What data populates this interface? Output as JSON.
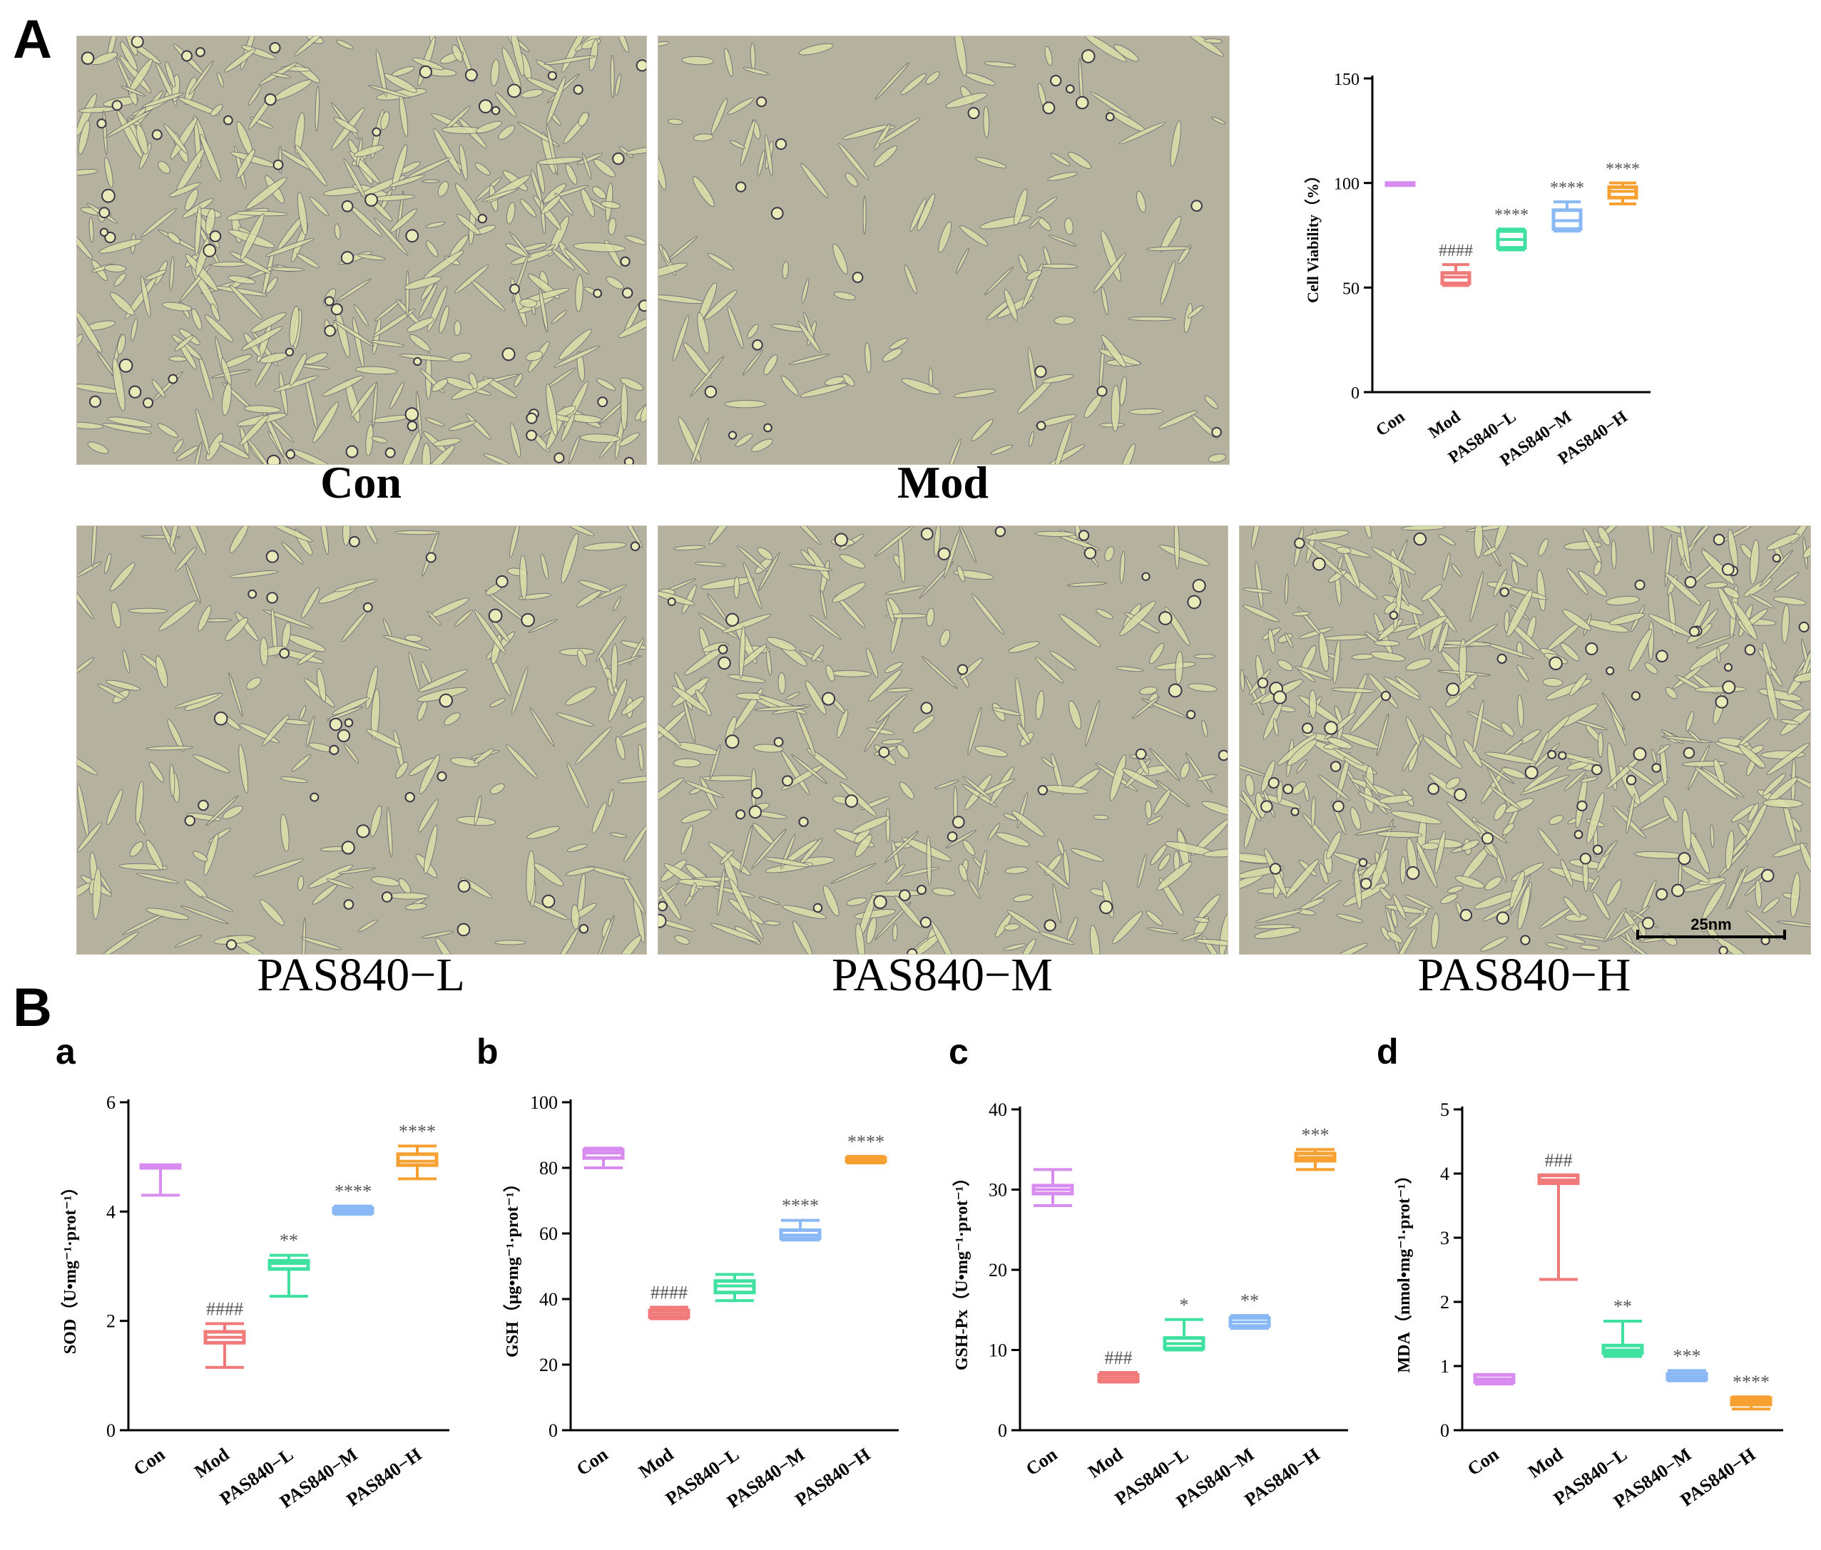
{
  "panels": {
    "A": "A",
    "B": "B",
    "sub": [
      "a",
      "b",
      "c",
      "d"
    ]
  },
  "micrographs": [
    {
      "label": "Con",
      "density": 420
    },
    {
      "label": "Mod",
      "density": 150
    },
    {
      "label": "PAS840−L",
      "density": 220
    },
    {
      "label": "PAS840−M",
      "density": 300
    },
    {
      "label": "PAS840−H",
      "density": 460
    }
  ],
  "scale_bar": "25nm",
  "colors": {
    "con": "#d98cf0",
    "mod": "#f07a7a",
    "low": "#3fe0a0",
    "mid": "#8ab8f5",
    "high": "#f5a030",
    "annotation": "#555555",
    "micro_bg": "#b9b49a"
  },
  "chart_data": [
    {
      "id": "viability",
      "type": "box",
      "ylabel": "Cell Viability（%）",
      "categories": [
        "Con",
        "Mod",
        "PAS840−L",
        "PAS840−M",
        "PAS840−H"
      ],
      "ylim": [
        0,
        150
      ],
      "yticks": [
        0,
        50,
        100,
        150
      ],
      "boxes": [
        {
          "min": 100,
          "q1": 100,
          "median": 100,
          "q3": 100,
          "max": 100
        },
        {
          "min": 51,
          "q1": 52,
          "median": 55,
          "q3": 57,
          "max": 61
        },
        {
          "min": 68,
          "q1": 69,
          "median": 73,
          "q3": 77,
          "max": 78
        },
        {
          "min": 77,
          "q1": 78,
          "median": 82,
          "q3": 87,
          "max": 91
        },
        {
          "min": 90,
          "q1": 93,
          "median": 96,
          "q3": 98,
          "max": 100
        }
      ],
      "annotations": [
        "",
        "####",
        "****",
        "****",
        "****"
      ]
    },
    {
      "id": "sod",
      "type": "box",
      "ylabel": "SOD（U•mg⁻¹·prot⁻¹）",
      "categories": [
        "Con",
        "Mod",
        "PAS840−L",
        "PAS840−M",
        "PAS840−H"
      ],
      "ylim": [
        0,
        6
      ],
      "yticks": [
        0,
        2,
        4,
        6
      ],
      "boxes": [
        {
          "min": 4.3,
          "q1": 4.8,
          "median": 4.82,
          "q3": 4.85,
          "max": 4.85
        },
        {
          "min": 1.15,
          "q1": 1.6,
          "median": 1.7,
          "q3": 1.8,
          "max": 1.95
        },
        {
          "min": 2.45,
          "q1": 2.95,
          "median": 3.05,
          "q3": 3.1,
          "max": 3.2
        },
        {
          "min": 3.95,
          "q1": 3.98,
          "median": 4.02,
          "q3": 4.06,
          "max": 4.1
        },
        {
          "min": 4.6,
          "q1": 4.85,
          "median": 4.92,
          "q3": 5.05,
          "max": 5.2
        }
      ],
      "annotations": [
        "",
        "####",
        "**",
        "****",
        "****"
      ]
    },
    {
      "id": "gsh",
      "type": "box",
      "ylabel": "GSH（μg•mg⁻¹·prot⁻¹）",
      "categories": [
        "Con",
        "Mod",
        "PAS840−L",
        "PAS840−M",
        "PAS840−H"
      ],
      "ylim": [
        0,
        100
      ],
      "yticks": [
        0,
        20,
        40,
        60,
        80,
        100
      ],
      "boxes": [
        {
          "min": 80,
          "q1": 83,
          "median": 84.5,
          "q3": 85.5,
          "max": 86
        },
        {
          "min": 34,
          "q1": 34.5,
          "median": 35.5,
          "q3": 36.5,
          "max": 37.5
        },
        {
          "min": 39.5,
          "q1": 42,
          "median": 44,
          "q3": 45.5,
          "max": 47.5
        },
        {
          "min": 58,
          "q1": 58.5,
          "median": 59.5,
          "q3": 61,
          "max": 64
        },
        {
          "min": 81.5,
          "q1": 82,
          "median": 82.5,
          "q3": 83,
          "max": 83.5
        }
      ],
      "annotations": [
        "",
        "####",
        "",
        "****",
        "****"
      ]
    },
    {
      "id": "gshpx",
      "type": "box",
      "ylabel": "GSH-Px（U•mg⁻¹·prot⁻¹）",
      "categories": [
        "Con",
        "Mod",
        "PAS840−L",
        "PAS840−M",
        "PAS840−H"
      ],
      "ylim": [
        0,
        40
      ],
      "yticks": [
        0,
        10,
        20,
        30,
        40
      ],
      "boxes": [
        {
          "min": 28,
          "q1": 29.5,
          "median": 30,
          "q3": 30.5,
          "max": 32.5
        },
        {
          "min": 6,
          "q1": 6.1,
          "median": 6.5,
          "q3": 6.9,
          "max": 7.2
        },
        {
          "min": 10,
          "q1": 10.2,
          "median": 10.8,
          "q3": 11.5,
          "max": 13.8
        },
        {
          "min": 12.7,
          "q1": 13,
          "median": 13.5,
          "q3": 14,
          "max": 14.3
        },
        {
          "min": 32.5,
          "q1": 33.6,
          "median": 34,
          "q3": 34.5,
          "max": 35
        }
      ],
      "annotations": [
        "",
        "###",
        "*",
        "**",
        "***"
      ]
    },
    {
      "id": "mda",
      "type": "box",
      "ylabel": "MDA（nmol•mg⁻¹·prot⁻¹）",
      "categories": [
        "Con",
        "Mod",
        "PAS840−L",
        "PAS840−M",
        "PAS840−H"
      ],
      "ylim": [
        0,
        5
      ],
      "yticks": [
        0,
        1,
        2,
        3,
        4,
        5
      ],
      "boxes": [
        {
          "min": 0.72,
          "q1": 0.75,
          "median": 0.8,
          "q3": 0.86,
          "max": 0.87
        },
        {
          "min": 2.35,
          "q1": 3.85,
          "median": 3.9,
          "q3": 3.97,
          "max": 3.98
        },
        {
          "min": 1.15,
          "q1": 1.2,
          "median": 1.25,
          "q3": 1.32,
          "max": 1.7
        },
        {
          "min": 0.77,
          "q1": 0.79,
          "median": 0.83,
          "q3": 0.88,
          "max": 0.93
        },
        {
          "min": 0.33,
          "q1": 0.4,
          "median": 0.45,
          "q3": 0.5,
          "max": 0.52
        }
      ],
      "annotations": [
        "",
        "###",
        "**",
        "***",
        "****"
      ]
    }
  ]
}
